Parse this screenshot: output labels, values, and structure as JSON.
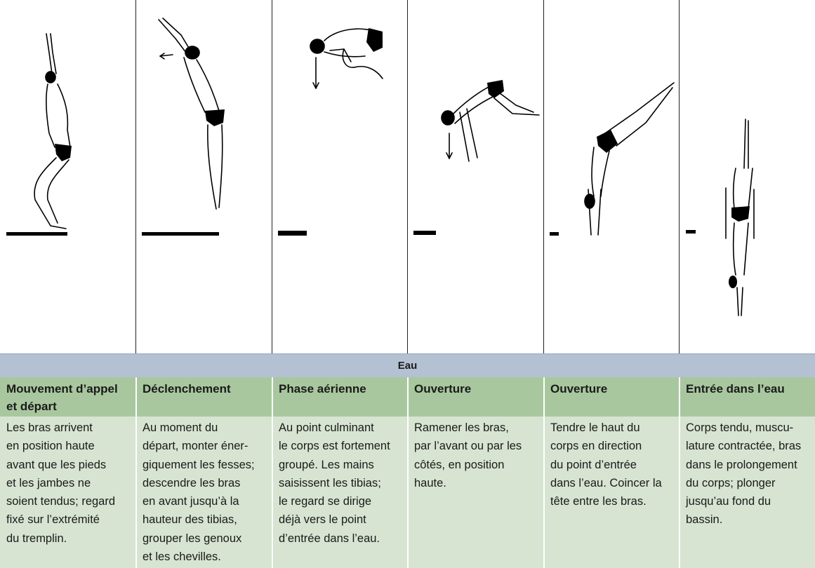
{
  "water_label": "Eau",
  "columns": [
    {
      "title": "Mouvement d’appel et départ",
      "title_lines": [
        "Mouvement d’appel",
        "et départ"
      ],
      "lines": [
        "Les bras arrivent",
        "en position haute",
        "avant que les pieds",
        "et les jambes ne",
        "soient tendus; regard",
        "fixé sur l’extrémité",
        "du tremplin."
      ]
    },
    {
      "title": "Déclenchement",
      "title_lines": [
        "Déclenchement"
      ],
      "lines": [
        "Au moment du",
        "départ, monter éner-",
        "giquement les fesses;",
        "descendre les bras",
        "en avant jusqu’à la",
        "hauteur des tibias,",
        "grouper les genoux",
        "et les chevilles."
      ]
    },
    {
      "title": "Phase aérienne",
      "title_lines": [
        "Phase aérienne"
      ],
      "lines": [
        "Au point culminant",
        "le corps est fortement",
        "groupé. Les mains",
        "saisissent les tibias;",
        "le regard se dirige",
        "déjà vers le point",
        "d’entrée dans l’eau."
      ]
    },
    {
      "title": "Ouverture",
      "title_lines": [
        "Ouverture"
      ],
      "lines": [
        "Ramener les bras,",
        "par l’avant ou par les",
        "côtés, en position",
        "haute."
      ]
    },
    {
      "title": "Ouverture",
      "title_lines": [
        "Ouverture"
      ],
      "lines": [
        "Tendre le haut du",
        "corps en direction",
        "du point d’entrée",
        "dans l’eau. Coincer la",
        "tête entre les bras."
      ]
    },
    {
      "title": "Entrée dans l’eau",
      "title_lines": [
        "Entrée dans l’eau"
      ],
      "lines": [
        "Corps tendu, muscu-",
        "lature contractée, bras",
        "dans le prolongement",
        "du corps; plonger",
        "jusqu’au fond du",
        "bassin."
      ]
    }
  ],
  "colors": {
    "water_bar": "#b3c1d3",
    "header_row": "#a9c79f",
    "body_row": "#d6e4d1",
    "ink": "#000000"
  },
  "icons": [
    "diver-figure",
    "springboard",
    "direction-arrow"
  ]
}
